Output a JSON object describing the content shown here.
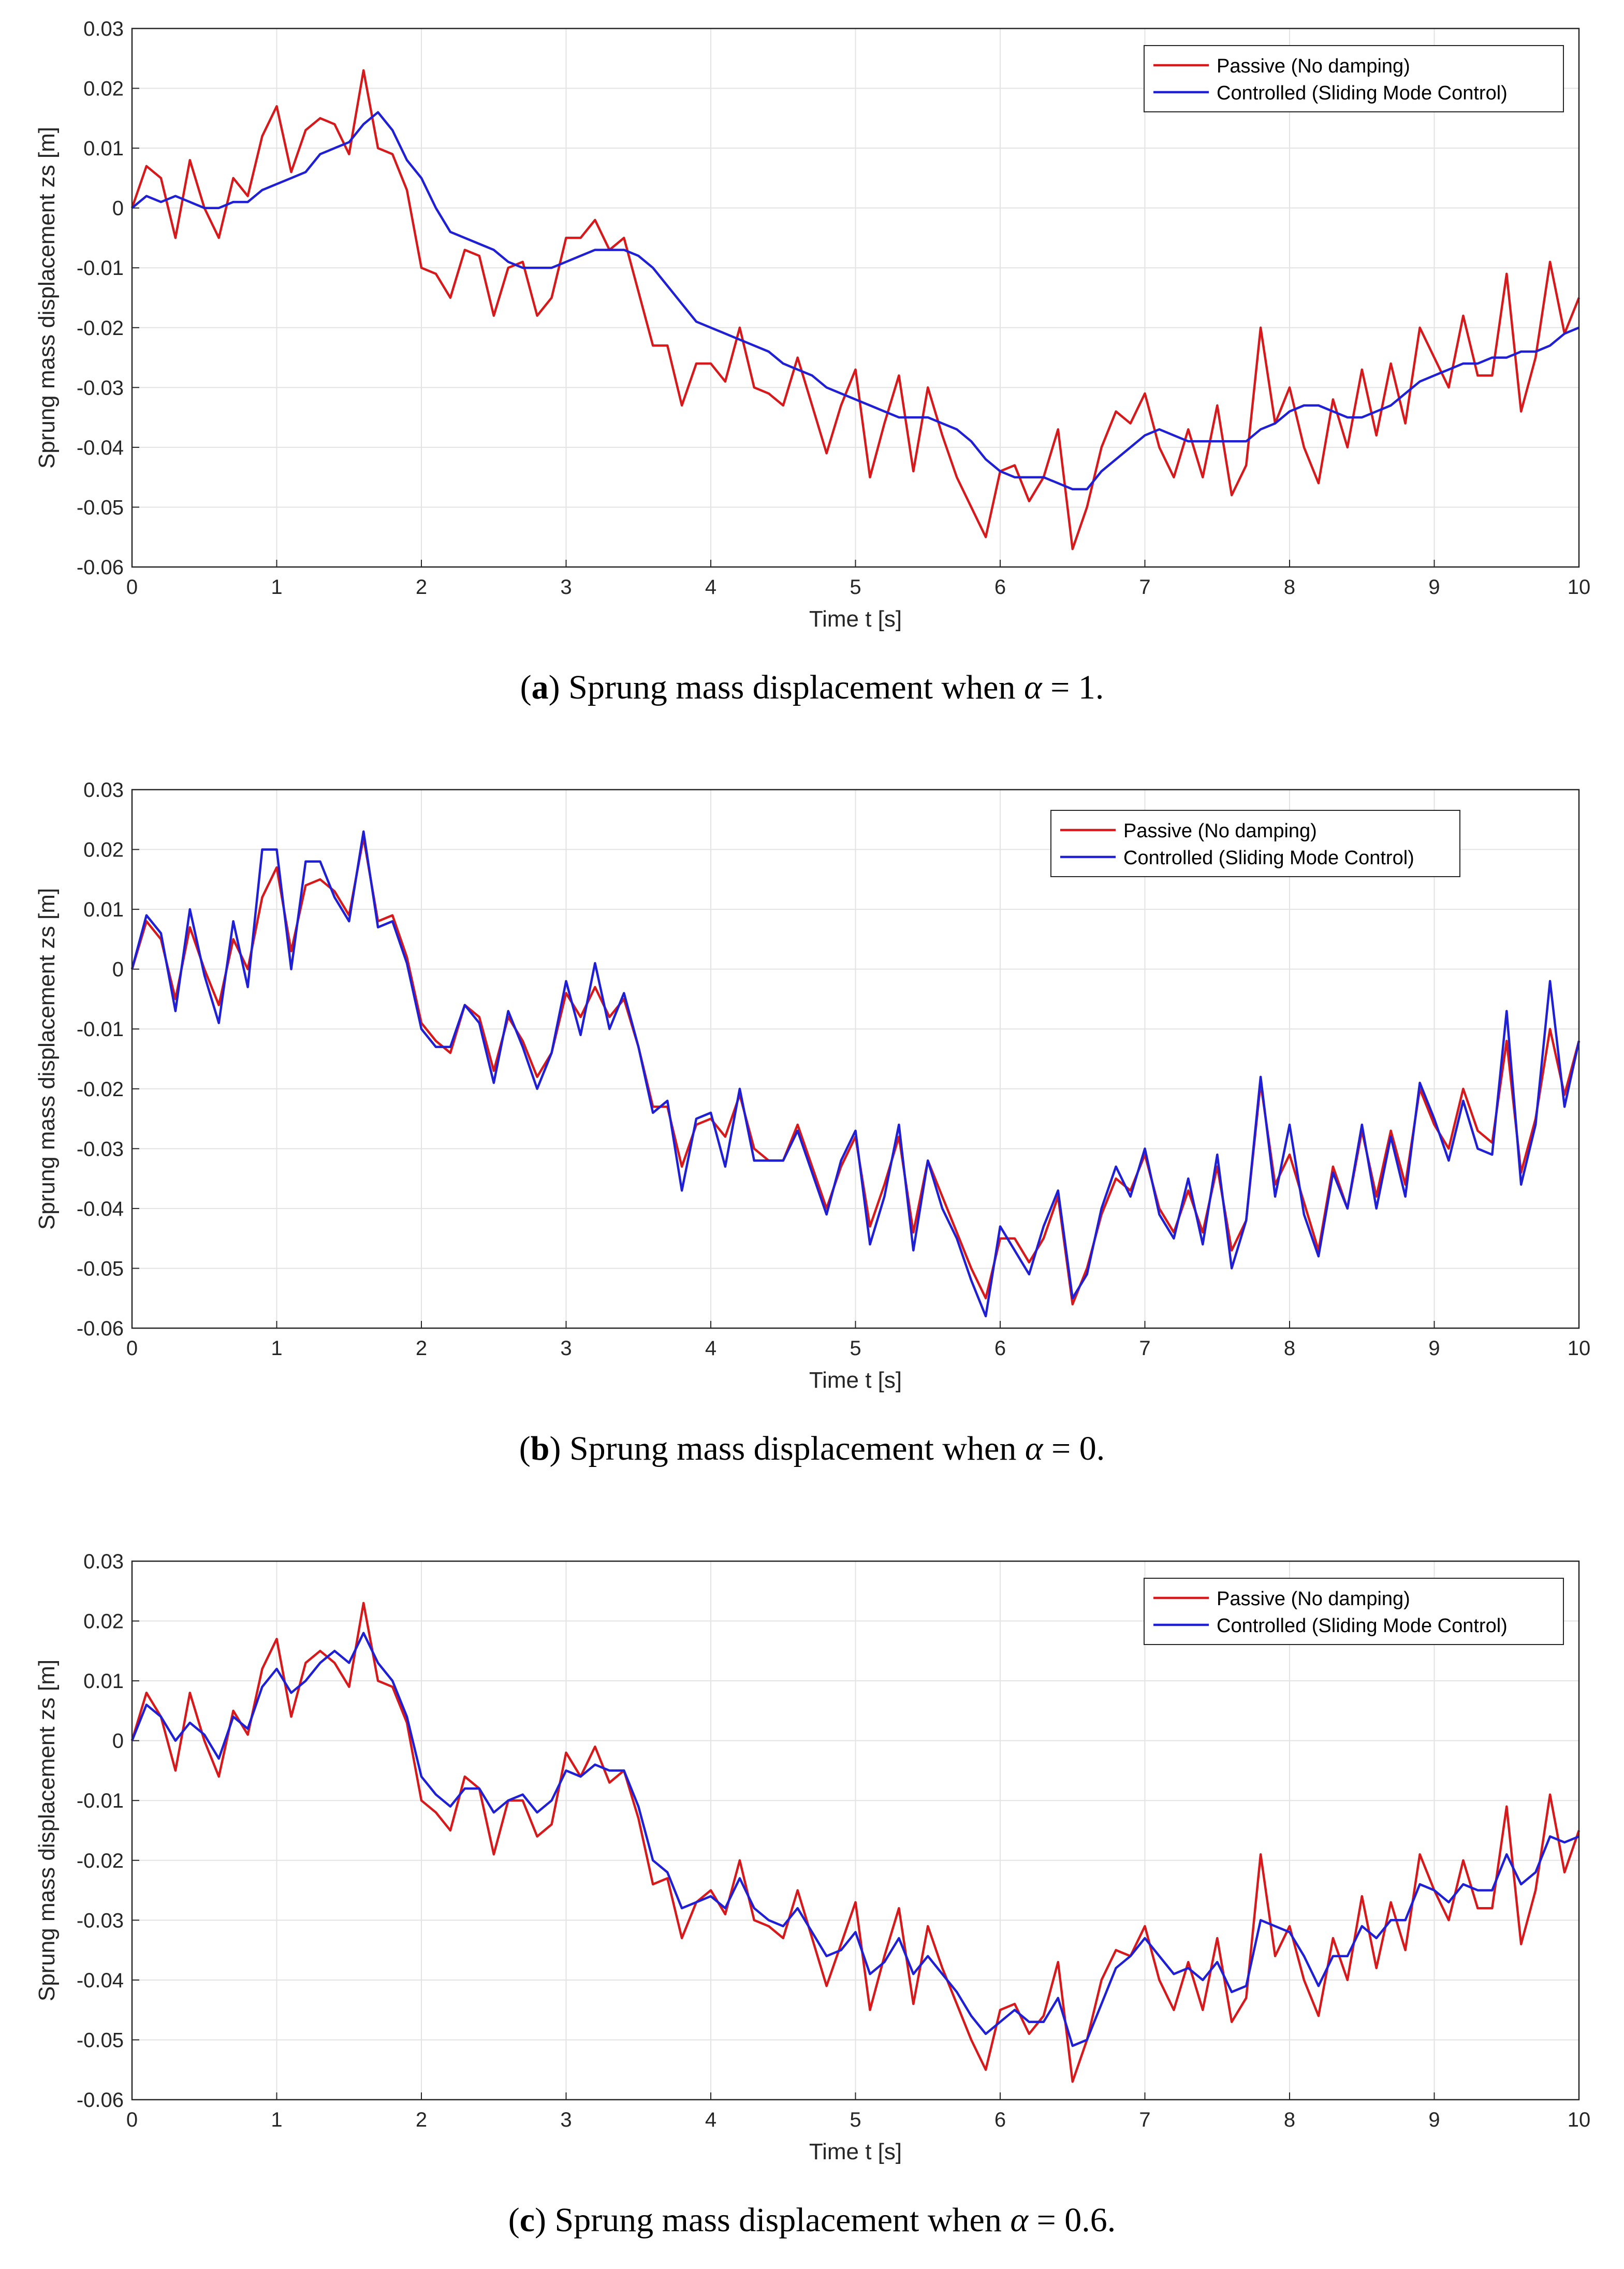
{
  "chart_data": [
    {
      "type": "line",
      "title": "",
      "xlabel": "Time t [s]",
      "ylabel": "Sprung mass displacement zs [m]",
      "xlim": [
        0,
        10
      ],
      "ylim": [
        -0.06,
        0.03
      ],
      "grid": true,
      "legend_position": "top-right",
      "x_ticks": [
        "0",
        "1",
        "2",
        "3",
        "4",
        "5",
        "6",
        "7",
        "8",
        "9",
        "10"
      ],
      "y_ticks": [
        "0.03",
        "0.02",
        "0.01",
        "0",
        "-0.01",
        "-0.02",
        "-0.03",
        "-0.04",
        "-0.05",
        "-0.06"
      ],
      "caption": {
        "label": "a",
        "text": "Sprung mass displacement when",
        "symbol": "α",
        "equals": "=",
        "value": "1"
      },
      "x": [
        0,
        0.1,
        0.2,
        0.3,
        0.4,
        0.5,
        0.6,
        0.7,
        0.8,
        0.9,
        1.0,
        1.1,
        1.2,
        1.3,
        1.4,
        1.5,
        1.6,
        1.7,
        1.8,
        1.9,
        2.0,
        2.1,
        2.2,
        2.3,
        2.4,
        2.5,
        2.6,
        2.7,
        2.8,
        2.9,
        3.0,
        3.1,
        3.2,
        3.3,
        3.4,
        3.5,
        3.6,
        3.7,
        3.8,
        3.9,
        4.0,
        4.1,
        4.2,
        4.3,
        4.4,
        4.5,
        4.6,
        4.7,
        4.8,
        4.9,
        5.0,
        5.1,
        5.2,
        5.3,
        5.4,
        5.5,
        5.6,
        5.7,
        5.8,
        5.9,
        6.0,
        6.1,
        6.2,
        6.3,
        6.4,
        6.5,
        6.6,
        6.7,
        6.8,
        6.9,
        7.0,
        7.1,
        7.2,
        7.3,
        7.4,
        7.5,
        7.6,
        7.7,
        7.8,
        7.9,
        8.0,
        8.1,
        8.2,
        8.3,
        8.4,
        8.5,
        8.6,
        8.7,
        8.8,
        8.9,
        9.0,
        9.1,
        9.2,
        9.3,
        9.4,
        9.5,
        9.6,
        9.7,
        9.8,
        9.9,
        10.0
      ],
      "series": [
        {
          "name": "Passive (No damping)",
          "color": "#d7191c",
          "values": [
            0.0,
            0.007,
            0.005,
            -0.005,
            0.008,
            0.0,
            -0.005,
            0.005,
            0.002,
            0.012,
            0.017,
            0.006,
            0.013,
            0.015,
            0.014,
            0.009,
            0.023,
            0.01,
            0.009,
            0.003,
            -0.01,
            -0.011,
            -0.015,
            -0.007,
            -0.008,
            -0.018,
            -0.01,
            -0.009,
            -0.018,
            -0.015,
            -0.005,
            -0.005,
            -0.002,
            -0.007,
            -0.005,
            -0.014,
            -0.023,
            -0.023,
            -0.033,
            -0.026,
            -0.026,
            -0.029,
            -0.02,
            -0.03,
            -0.031,
            -0.033,
            -0.025,
            -0.033,
            -0.041,
            -0.033,
            -0.027,
            -0.045,
            -0.036,
            -0.028,
            -0.044,
            -0.03,
            -0.038,
            -0.045,
            -0.05,
            -0.055,
            -0.044,
            -0.043,
            -0.049,
            -0.045,
            -0.037,
            -0.057,
            -0.05,
            -0.04,
            -0.034,
            -0.036,
            -0.031,
            -0.04,
            -0.045,
            -0.037,
            -0.045,
            -0.033,
            -0.048,
            -0.043,
            -0.02,
            -0.036,
            -0.03,
            -0.04,
            -0.046,
            -0.032,
            -0.04,
            -0.027,
            -0.038,
            -0.026,
            -0.036,
            -0.02,
            -0.025,
            -0.03,
            -0.018,
            -0.028,
            -0.028,
            -0.011,
            -0.034,
            -0.025,
            -0.009,
            -0.021,
            -0.015
          ]
        },
        {
          "name": "Controlled (Sliding Mode Control)",
          "color": "#1f1fd6",
          "values": [
            0.0,
            0.002,
            0.001,
            0.002,
            0.001,
            0.0,
            0.0,
            0.001,
            0.001,
            0.003,
            0.004,
            0.005,
            0.006,
            0.009,
            0.01,
            0.011,
            0.014,
            0.016,
            0.013,
            0.008,
            0.005,
            0.0,
            -0.004,
            -0.005,
            -0.006,
            -0.007,
            -0.009,
            -0.01,
            -0.01,
            -0.01,
            -0.009,
            -0.008,
            -0.007,
            -0.007,
            -0.007,
            -0.008,
            -0.01,
            -0.013,
            -0.016,
            -0.019,
            -0.02,
            -0.021,
            -0.022,
            -0.023,
            -0.024,
            -0.026,
            -0.027,
            -0.028,
            -0.03,
            -0.031,
            -0.032,
            -0.033,
            -0.034,
            -0.035,
            -0.035,
            -0.035,
            -0.036,
            -0.037,
            -0.039,
            -0.042,
            -0.044,
            -0.045,
            -0.045,
            -0.045,
            -0.046,
            -0.047,
            -0.047,
            -0.044,
            -0.042,
            -0.04,
            -0.038,
            -0.037,
            -0.038,
            -0.039,
            -0.039,
            -0.039,
            -0.039,
            -0.039,
            -0.037,
            -0.036,
            -0.034,
            -0.033,
            -0.033,
            -0.034,
            -0.035,
            -0.035,
            -0.034,
            -0.033,
            -0.031,
            -0.029,
            -0.028,
            -0.027,
            -0.026,
            -0.026,
            -0.025,
            -0.025,
            -0.024,
            -0.024,
            -0.023,
            -0.021,
            -0.02
          ]
        }
      ]
    },
    {
      "type": "line",
      "title": "",
      "xlabel": "Time t [s]",
      "ylabel": "Sprung mass displacement zs [m]",
      "xlim": [
        0,
        10
      ],
      "ylim": [
        -0.06,
        0.03
      ],
      "grid": true,
      "legend_position": "top-right",
      "x_ticks": [
        "0",
        "1",
        "2",
        "3",
        "4",
        "5",
        "6",
        "7",
        "8",
        "9",
        "10"
      ],
      "y_ticks": [
        "0.03",
        "0.02",
        "0.01",
        "0",
        "-0.01",
        "-0.02",
        "-0.03",
        "-0.04",
        "-0.05",
        "-0.06"
      ],
      "caption": {
        "label": "b",
        "text": "Sprung mass displacement when",
        "symbol": "α",
        "equals": "=",
        "value": "0"
      },
      "x": [
        0,
        0.1,
        0.2,
        0.3,
        0.4,
        0.5,
        0.6,
        0.7,
        0.8,
        0.9,
        1.0,
        1.1,
        1.2,
        1.3,
        1.4,
        1.5,
        1.6,
        1.7,
        1.8,
        1.9,
        2.0,
        2.1,
        2.2,
        2.3,
        2.4,
        2.5,
        2.6,
        2.7,
        2.8,
        2.9,
        3.0,
        3.1,
        3.2,
        3.3,
        3.4,
        3.5,
        3.6,
        3.7,
        3.8,
        3.9,
        4.0,
        4.1,
        4.2,
        4.3,
        4.4,
        4.5,
        4.6,
        4.7,
        4.8,
        4.9,
        5.0,
        5.1,
        5.2,
        5.3,
        5.4,
        5.5,
        5.6,
        5.7,
        5.8,
        5.9,
        6.0,
        6.1,
        6.2,
        6.3,
        6.4,
        6.5,
        6.6,
        6.7,
        6.8,
        6.9,
        7.0,
        7.1,
        7.2,
        7.3,
        7.4,
        7.5,
        7.6,
        7.7,
        7.8,
        7.9,
        8.0,
        8.1,
        8.2,
        8.3,
        8.4,
        8.5,
        8.6,
        8.7,
        8.8,
        8.9,
        9.0,
        9.1,
        9.2,
        9.3,
        9.4,
        9.5,
        9.6,
        9.7,
        9.8,
        9.9,
        10.0
      ],
      "series": [
        {
          "name": "Passive (No damping)",
          "color": "#d7191c",
          "values": [
            0.0,
            0.008,
            0.005,
            -0.005,
            0.007,
            0.0,
            -0.006,
            0.005,
            0.0,
            0.012,
            0.017,
            0.003,
            0.014,
            0.015,
            0.013,
            0.009,
            0.022,
            0.008,
            0.009,
            0.002,
            -0.009,
            -0.012,
            -0.014,
            -0.006,
            -0.008,
            -0.017,
            -0.008,
            -0.012,
            -0.018,
            -0.014,
            -0.004,
            -0.008,
            -0.003,
            -0.008,
            -0.005,
            -0.013,
            -0.023,
            -0.023,
            -0.033,
            -0.026,
            -0.025,
            -0.028,
            -0.021,
            -0.03,
            -0.032,
            -0.032,
            -0.026,
            -0.033,
            -0.04,
            -0.033,
            -0.028,
            -0.043,
            -0.036,
            -0.028,
            -0.044,
            -0.032,
            -0.038,
            -0.044,
            -0.05,
            -0.055,
            -0.045,
            -0.045,
            -0.049,
            -0.045,
            -0.038,
            -0.056,
            -0.05,
            -0.041,
            -0.035,
            -0.037,
            -0.031,
            -0.04,
            -0.044,
            -0.037,
            -0.044,
            -0.033,
            -0.047,
            -0.042,
            -0.019,
            -0.036,
            -0.031,
            -0.039,
            -0.047,
            -0.033,
            -0.04,
            -0.027,
            -0.038,
            -0.027,
            -0.036,
            -0.02,
            -0.026,
            -0.03,
            -0.02,
            -0.027,
            -0.029,
            -0.012,
            -0.034,
            -0.025,
            -0.01,
            -0.021,
            -0.012
          ]
        },
        {
          "name": "Controlled (Sliding Mode Control)",
          "color": "#1f1fd6",
          "values": [
            0.0,
            0.009,
            0.006,
            -0.007,
            0.01,
            -0.001,
            -0.009,
            0.008,
            -0.003,
            0.02,
            0.02,
            0.0,
            0.018,
            0.018,
            0.012,
            0.008,
            0.023,
            0.007,
            0.008,
            0.001,
            -0.01,
            -0.013,
            -0.013,
            -0.006,
            -0.009,
            -0.019,
            -0.007,
            -0.013,
            -0.02,
            -0.014,
            -0.002,
            -0.011,
            0.001,
            -0.01,
            -0.004,
            -0.013,
            -0.024,
            -0.022,
            -0.037,
            -0.025,
            -0.024,
            -0.033,
            -0.02,
            -0.032,
            -0.032,
            -0.032,
            -0.027,
            -0.034,
            -0.041,
            -0.032,
            -0.027,
            -0.046,
            -0.038,
            -0.026,
            -0.047,
            -0.032,
            -0.04,
            -0.045,
            -0.052,
            -0.058,
            -0.043,
            -0.047,
            -0.051,
            -0.043,
            -0.037,
            -0.055,
            -0.051,
            -0.04,
            -0.033,
            -0.038,
            -0.03,
            -0.041,
            -0.045,
            -0.035,
            -0.046,
            -0.031,
            -0.05,
            -0.042,
            -0.018,
            -0.038,
            -0.026,
            -0.041,
            -0.048,
            -0.034,
            -0.04,
            -0.026,
            -0.04,
            -0.028,
            -0.038,
            -0.019,
            -0.025,
            -0.032,
            -0.022,
            -0.03,
            -0.031,
            -0.007,
            -0.036,
            -0.026,
            -0.002,
            -0.023,
            -0.012
          ]
        }
      ]
    },
    {
      "type": "line",
      "title": "",
      "xlabel": "Time t [s]",
      "ylabel": "Sprung mass displacement zs [m]",
      "xlim": [
        0,
        10
      ],
      "ylim": [
        -0.06,
        0.03
      ],
      "grid": true,
      "legend_position": "top-right",
      "x_ticks": [
        "0",
        "1",
        "2",
        "3",
        "4",
        "5",
        "6",
        "7",
        "8",
        "9",
        "10"
      ],
      "y_ticks": [
        "0.03",
        "0.02",
        "0.01",
        "0",
        "-0.01",
        "-0.02",
        "-0.03",
        "-0.04",
        "-0.05",
        "-0.06"
      ],
      "caption": {
        "label": "c",
        "text": "Sprung mass displacement when",
        "symbol": "α",
        "equals": "=",
        "value": "0.6"
      },
      "x": [
        0,
        0.1,
        0.2,
        0.3,
        0.4,
        0.5,
        0.6,
        0.7,
        0.8,
        0.9,
        1.0,
        1.1,
        1.2,
        1.3,
        1.4,
        1.5,
        1.6,
        1.7,
        1.8,
        1.9,
        2.0,
        2.1,
        2.2,
        2.3,
        2.4,
        2.5,
        2.6,
        2.7,
        2.8,
        2.9,
        3.0,
        3.1,
        3.2,
        3.3,
        3.4,
        3.5,
        3.6,
        3.7,
        3.8,
        3.9,
        4.0,
        4.1,
        4.2,
        4.3,
        4.4,
        4.5,
        4.6,
        4.7,
        4.8,
        4.9,
        5.0,
        5.1,
        5.2,
        5.3,
        5.4,
        5.5,
        5.6,
        5.7,
        5.8,
        5.9,
        6.0,
        6.1,
        6.2,
        6.3,
        6.4,
        6.5,
        6.6,
        6.7,
        6.8,
        6.9,
        7.0,
        7.1,
        7.2,
        7.3,
        7.4,
        7.5,
        7.6,
        7.7,
        7.8,
        7.9,
        8.0,
        8.1,
        8.2,
        8.3,
        8.4,
        8.5,
        8.6,
        8.7,
        8.8,
        8.9,
        9.0,
        9.1,
        9.2,
        9.3,
        9.4,
        9.5,
        9.6,
        9.7,
        9.8,
        9.9,
        10.0
      ],
      "series": [
        {
          "name": "Passive (No damping)",
          "color": "#d7191c",
          "values": [
            0.0,
            0.008,
            0.004,
            -0.005,
            0.008,
            0.0,
            -0.006,
            0.005,
            0.001,
            0.012,
            0.017,
            0.004,
            0.013,
            0.015,
            0.013,
            0.009,
            0.023,
            0.01,
            0.009,
            0.003,
            -0.01,
            -0.012,
            -0.015,
            -0.006,
            -0.008,
            -0.019,
            -0.01,
            -0.01,
            -0.016,
            -0.014,
            -0.002,
            -0.006,
            -0.001,
            -0.007,
            -0.005,
            -0.013,
            -0.024,
            -0.023,
            -0.033,
            -0.027,
            -0.025,
            -0.029,
            -0.02,
            -0.03,
            -0.031,
            -0.033,
            -0.025,
            -0.033,
            -0.041,
            -0.034,
            -0.027,
            -0.045,
            -0.036,
            -0.028,
            -0.044,
            -0.031,
            -0.038,
            -0.044,
            -0.05,
            -0.055,
            -0.045,
            -0.044,
            -0.049,
            -0.046,
            -0.037,
            -0.057,
            -0.05,
            -0.04,
            -0.035,
            -0.036,
            -0.031,
            -0.04,
            -0.045,
            -0.037,
            -0.045,
            -0.033,
            -0.047,
            -0.043,
            -0.019,
            -0.036,
            -0.031,
            -0.04,
            -0.046,
            -0.033,
            -0.04,
            -0.026,
            -0.038,
            -0.027,
            -0.035,
            -0.019,
            -0.025,
            -0.03,
            -0.02,
            -0.028,
            -0.028,
            -0.011,
            -0.034,
            -0.025,
            -0.009,
            -0.022,
            -0.015
          ]
        },
        {
          "name": "Controlled (Sliding Mode Control)",
          "color": "#1f1fd6",
          "values": [
            0.0,
            0.006,
            0.004,
            0.0,
            0.003,
            0.001,
            -0.003,
            0.004,
            0.002,
            0.009,
            0.012,
            0.008,
            0.01,
            0.013,
            0.015,
            0.013,
            0.018,
            0.013,
            0.01,
            0.004,
            -0.006,
            -0.009,
            -0.011,
            -0.008,
            -0.008,
            -0.012,
            -0.01,
            -0.009,
            -0.012,
            -0.01,
            -0.005,
            -0.006,
            -0.004,
            -0.005,
            -0.005,
            -0.011,
            -0.02,
            -0.022,
            -0.028,
            -0.027,
            -0.026,
            -0.028,
            -0.023,
            -0.028,
            -0.03,
            -0.031,
            -0.028,
            -0.032,
            -0.036,
            -0.035,
            -0.032,
            -0.039,
            -0.037,
            -0.033,
            -0.039,
            -0.036,
            -0.039,
            -0.042,
            -0.046,
            -0.049,
            -0.047,
            -0.045,
            -0.047,
            -0.047,
            -0.043,
            -0.051,
            -0.05,
            -0.044,
            -0.038,
            -0.036,
            -0.033,
            -0.036,
            -0.039,
            -0.038,
            -0.04,
            -0.037,
            -0.042,
            -0.041,
            -0.03,
            -0.031,
            -0.032,
            -0.036,
            -0.041,
            -0.036,
            -0.036,
            -0.031,
            -0.033,
            -0.03,
            -0.03,
            -0.024,
            -0.025,
            -0.027,
            -0.024,
            -0.025,
            -0.025,
            -0.019,
            -0.024,
            -0.022,
            -0.016,
            -0.017,
            -0.016
          ]
        }
      ]
    }
  ]
}
